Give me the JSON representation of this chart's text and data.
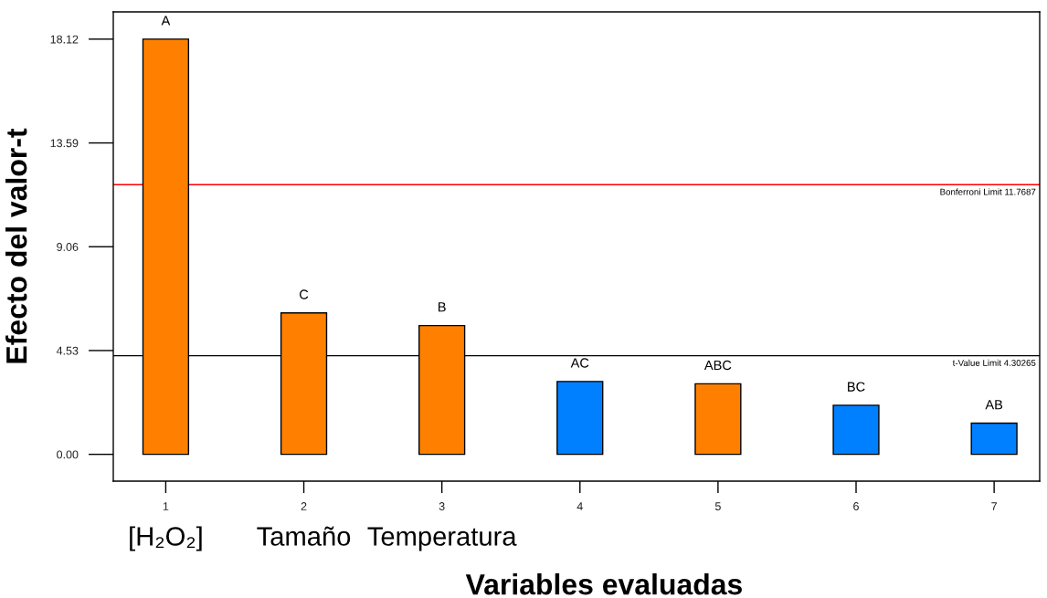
{
  "chart_data": {
    "type": "bar",
    "x": [
      1,
      2,
      3,
      4,
      5,
      6,
      7
    ],
    "values": [
      18.12,
      6.17,
      5.62,
      3.18,
      3.08,
      2.14,
      1.36
    ],
    "colors": [
      "#ff8000",
      "#ff8000",
      "#ff8000",
      "#0080ff",
      "#ff8000",
      "#0080ff",
      "#0080ff"
    ],
    "xlabel": "Variables evaluadas",
    "ylabel": "Efecto del valor-t",
    "xlim": [
      0.62,
      7.33
    ],
    "xticks": [
      1,
      2,
      3,
      4,
      5,
      6,
      7
    ],
    "ylim": [
      -1.17,
      19.31
    ],
    "yticks": [
      {
        "value": 0,
        "label": "0.00"
      },
      4.53,
      9.06,
      13.59,
      18.12
    ],
    "ref_lines": [
      {
        "axis": "y",
        "value": 11.7687,
        "label": "Bonferroni Limit 11.7687",
        "color": "#ff0000"
      },
      {
        "axis": "y",
        "value": 4.30265,
        "label": "t-Value Limit 4.30265",
        "color": "#000000"
      }
    ],
    "annotations": [
      {
        "text": "A",
        "x": 1,
        "y": 18.12
      },
      {
        "text": "C",
        "x": 2,
        "y": 6.17
      },
      {
        "text": "B",
        "x": 3,
        "y": 5.62
      },
      {
        "text": "AC",
        "x": 4,
        "y": 3.18
      },
      {
        "text": "ABC",
        "x": 5,
        "y": 3.08
      },
      {
        "text": "BC",
        "x": 6,
        "y": 2.14
      },
      {
        "text": "AB",
        "x": 7,
        "y": 1.36
      },
      "[H₂O₂]",
      "Tamaño",
      "Temperatura"
    ]
  }
}
